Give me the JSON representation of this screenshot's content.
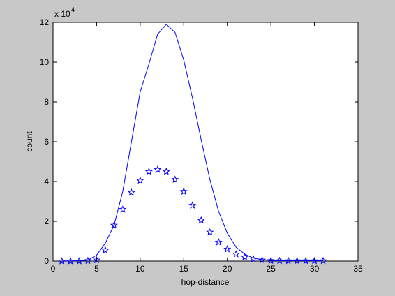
{
  "chart_data": {
    "type": "line",
    "xlabel": "hop-distance",
    "ylabel": "count",
    "y_multiplier": "x 10",
    "y_multiplier_exponent": "4",
    "x": [
      1,
      2,
      3,
      4,
      5,
      6,
      7,
      8,
      9,
      10,
      11,
      12,
      13,
      14,
      15,
      16,
      17,
      18,
      19,
      20,
      21,
      22,
      23,
      24,
      25,
      26,
      27,
      28,
      29,
      30,
      31
    ],
    "series": [
      {
        "style": "line",
        "color": "#0000ff",
        "values": [
          0.01,
          0.01,
          0.02,
          0.05,
          0.3,
          0.9,
          1.8,
          3.5,
          6,
          8.5,
          9.9,
          11.4,
          11.9,
          11.5,
          10.1,
          8.2,
          6.1,
          4.1,
          2.5,
          1.4,
          0.7,
          0.35,
          0.15,
          0.07,
          0.03,
          0.02,
          0.02,
          0.02,
          0.02,
          0.02,
          0.02
        ]
      },
      {
        "style": "marker",
        "color": "#0000ff",
        "values": [
          0,
          0,
          0,
          0.02,
          0.05,
          0.55,
          1.8,
          2.6,
          3.45,
          4.05,
          4.5,
          4.6,
          4.5,
          4.1,
          3.5,
          2.8,
          2.05,
          1.45,
          0.95,
          0.6,
          0.35,
          0.2,
          0.1,
          0.05,
          0.02,
          0.01,
          0.01,
          0.01,
          0.01,
          0.01,
          0.01
        ]
      }
    ],
    "xlim": [
      0,
      35
    ],
    "xticks": [
      0,
      5,
      10,
      15,
      20,
      25,
      30,
      35
    ],
    "ylim": [
      0,
      12
    ],
    "yticks": [
      0,
      2,
      4,
      6,
      8,
      10,
      12
    ],
    "grid": false
  }
}
